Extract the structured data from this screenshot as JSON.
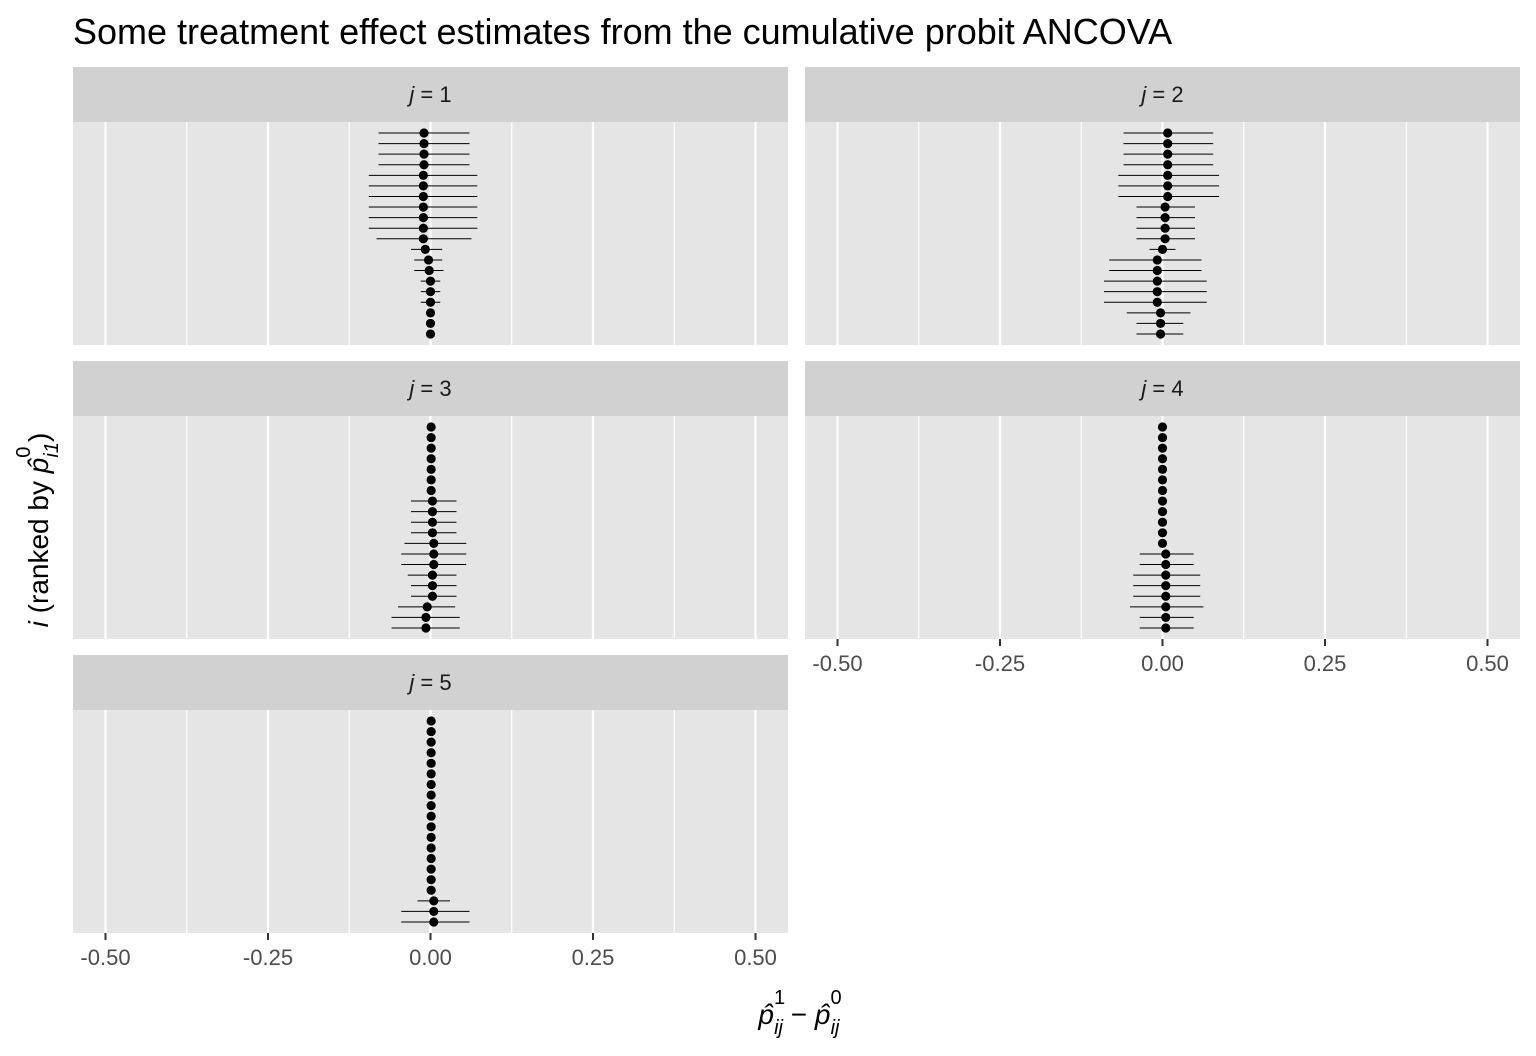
{
  "chart_data": {
    "type": "scatter",
    "title": "Some treatment effect estimates from the cumulative probit ANCOVA",
    "xlabel": {
      "main": "p",
      "sup1": "1",
      "sub1": "ij",
      "minus": "−",
      "sup2": "0",
      "sub2": "ij"
    },
    "ylabel": {
      "prefix": "i",
      "text": "(ranked by ",
      "p": "p",
      "sup": "0",
      "sub": "i1",
      "close": ")"
    },
    "xlim": [
      -0.55,
      0.55
    ],
    "x_ticks": [
      -0.5,
      -0.25,
      0.0,
      0.25,
      0.5
    ],
    "x_tick_labels": [
      "-0.50",
      "-0.25",
      "0.00",
      "0.25",
      "0.50"
    ],
    "grid": true,
    "rows_per_panel": 20,
    "panels": [
      {
        "label_var": "j",
        "label_eq": " = 1",
        "points": [
          {
            "est": -0.01,
            "lo": -0.08,
            "hi": 0.06
          },
          {
            "est": -0.01,
            "lo": -0.08,
            "hi": 0.06
          },
          {
            "est": -0.01,
            "lo": -0.08,
            "hi": 0.06
          },
          {
            "est": -0.01,
            "lo": -0.08,
            "hi": 0.06
          },
          {
            "est": -0.011,
            "lo": -0.095,
            "hi": 0.072
          },
          {
            "est": -0.011,
            "lo": -0.095,
            "hi": 0.072
          },
          {
            "est": -0.011,
            "lo": -0.095,
            "hi": 0.072
          },
          {
            "est": -0.011,
            "lo": -0.095,
            "hi": 0.072
          },
          {
            "est": -0.011,
            "lo": -0.095,
            "hi": 0.072
          },
          {
            "est": -0.011,
            "lo": -0.095,
            "hi": 0.072
          },
          {
            "est": -0.011,
            "lo": -0.083,
            "hi": 0.063
          },
          {
            "est": -0.008,
            "lo": -0.03,
            "hi": 0.018
          },
          {
            "est": -0.003,
            "lo": -0.025,
            "hi": 0.018
          },
          {
            "est": -0.002,
            "lo": -0.025,
            "hi": 0.02
          },
          {
            "est": 0.0,
            "lo": -0.015,
            "hi": 0.015
          },
          {
            "est": 0.0,
            "lo": -0.015,
            "hi": 0.015
          },
          {
            "est": 0.0,
            "lo": -0.015,
            "hi": 0.015
          },
          {
            "est": 0.0,
            "lo": 0.0,
            "hi": 0.0
          },
          {
            "est": 0.0,
            "lo": 0.0,
            "hi": 0.0
          },
          {
            "est": 0.0,
            "lo": 0.0,
            "hi": 0.0
          }
        ]
      },
      {
        "label_var": "j",
        "label_eq": " = 2",
        "points": [
          {
            "est": 0.008,
            "lo": -0.06,
            "hi": 0.078
          },
          {
            "est": 0.008,
            "lo": -0.06,
            "hi": 0.078
          },
          {
            "est": 0.008,
            "lo": -0.06,
            "hi": 0.078
          },
          {
            "est": 0.008,
            "lo": -0.06,
            "hi": 0.078
          },
          {
            "est": 0.008,
            "lo": -0.068,
            "hi": 0.087
          },
          {
            "est": 0.008,
            "lo": -0.068,
            "hi": 0.087
          },
          {
            "est": 0.008,
            "lo": -0.068,
            "hi": 0.087
          },
          {
            "est": 0.004,
            "lo": -0.04,
            "hi": 0.05
          },
          {
            "est": 0.004,
            "lo": -0.04,
            "hi": 0.05
          },
          {
            "est": 0.004,
            "lo": -0.04,
            "hi": 0.05
          },
          {
            "est": 0.004,
            "lo": -0.04,
            "hi": 0.05
          },
          {
            "est": 0.0,
            "lo": -0.02,
            "hi": 0.02
          },
          {
            "est": -0.008,
            "lo": -0.082,
            "hi": 0.06
          },
          {
            "est": -0.008,
            "lo": -0.082,
            "hi": 0.06
          },
          {
            "est": -0.008,
            "lo": -0.09,
            "hi": 0.068
          },
          {
            "est": -0.008,
            "lo": -0.09,
            "hi": 0.068
          },
          {
            "est": -0.008,
            "lo": -0.09,
            "hi": 0.068
          },
          {
            "est": -0.003,
            "lo": -0.055,
            "hi": 0.043
          },
          {
            "est": -0.003,
            "lo": -0.04,
            "hi": 0.032
          },
          {
            "est": -0.003,
            "lo": -0.04,
            "hi": 0.032
          }
        ]
      },
      {
        "label_var": "j",
        "label_eq": " = 3",
        "points": [
          {
            "est": 0.001,
            "lo": 0.001,
            "hi": 0.001
          },
          {
            "est": 0.001,
            "lo": 0.001,
            "hi": 0.001
          },
          {
            "est": 0.001,
            "lo": 0.001,
            "hi": 0.001
          },
          {
            "est": 0.001,
            "lo": 0.001,
            "hi": 0.001
          },
          {
            "est": 0.001,
            "lo": 0.001,
            "hi": 0.001
          },
          {
            "est": 0.001,
            "lo": 0.001,
            "hi": 0.001
          },
          {
            "est": 0.001,
            "lo": 0.001,
            "hi": 0.001
          },
          {
            "est": 0.003,
            "lo": -0.03,
            "hi": 0.04
          },
          {
            "est": 0.003,
            "lo": -0.03,
            "hi": 0.04
          },
          {
            "est": 0.003,
            "lo": -0.03,
            "hi": 0.04
          },
          {
            "est": 0.003,
            "lo": -0.03,
            "hi": 0.04
          },
          {
            "est": 0.005,
            "lo": -0.04,
            "hi": 0.055
          },
          {
            "est": 0.005,
            "lo": -0.045,
            "hi": 0.055
          },
          {
            "est": 0.005,
            "lo": -0.045,
            "hi": 0.055
          },
          {
            "est": 0.003,
            "lo": -0.035,
            "hi": 0.04
          },
          {
            "est": 0.003,
            "lo": -0.03,
            "hi": 0.04
          },
          {
            "est": 0.003,
            "lo": -0.03,
            "hi": 0.04
          },
          {
            "est": -0.005,
            "lo": -0.05,
            "hi": 0.038
          },
          {
            "est": -0.007,
            "lo": -0.06,
            "hi": 0.045
          },
          {
            "est": -0.007,
            "lo": -0.06,
            "hi": 0.045
          }
        ]
      },
      {
        "label_var": "j",
        "label_eq": " = 4",
        "points": [
          {
            "est": 0.0,
            "lo": 0.0,
            "hi": 0.0
          },
          {
            "est": 0.0,
            "lo": 0.0,
            "hi": 0.0
          },
          {
            "est": 0.0,
            "lo": 0.0,
            "hi": 0.0
          },
          {
            "est": 0.0,
            "lo": 0.0,
            "hi": 0.0
          },
          {
            "est": 0.0,
            "lo": 0.0,
            "hi": 0.0
          },
          {
            "est": 0.0,
            "lo": 0.0,
            "hi": 0.0
          },
          {
            "est": 0.0,
            "lo": 0.0,
            "hi": 0.0
          },
          {
            "est": 0.0,
            "lo": 0.0,
            "hi": 0.0
          },
          {
            "est": 0.0,
            "lo": 0.0,
            "hi": 0.0
          },
          {
            "est": 0.0,
            "lo": 0.0,
            "hi": 0.0
          },
          {
            "est": 0.0,
            "lo": 0.0,
            "hi": 0.0
          },
          {
            "est": 0.0,
            "lo": 0.0,
            "hi": 0.0
          },
          {
            "est": 0.005,
            "lo": -0.035,
            "hi": 0.048
          },
          {
            "est": 0.005,
            "lo": -0.035,
            "hi": 0.048
          },
          {
            "est": 0.005,
            "lo": -0.045,
            "hi": 0.058
          },
          {
            "est": 0.005,
            "lo": -0.045,
            "hi": 0.058
          },
          {
            "est": 0.005,
            "lo": -0.045,
            "hi": 0.058
          },
          {
            "est": 0.005,
            "lo": -0.05,
            "hi": 0.063
          },
          {
            "est": 0.005,
            "lo": -0.035,
            "hi": 0.048
          },
          {
            "est": 0.005,
            "lo": -0.035,
            "hi": 0.048
          }
        ]
      },
      {
        "label_var": "j",
        "label_eq": " = 5",
        "points": [
          {
            "est": 0.001,
            "lo": 0.001,
            "hi": 0.001
          },
          {
            "est": 0.001,
            "lo": 0.001,
            "hi": 0.001
          },
          {
            "est": 0.001,
            "lo": 0.001,
            "hi": 0.001
          },
          {
            "est": 0.001,
            "lo": 0.001,
            "hi": 0.001
          },
          {
            "est": 0.001,
            "lo": 0.001,
            "hi": 0.001
          },
          {
            "est": 0.001,
            "lo": 0.001,
            "hi": 0.001
          },
          {
            "est": 0.001,
            "lo": 0.001,
            "hi": 0.001
          },
          {
            "est": 0.001,
            "lo": 0.001,
            "hi": 0.001
          },
          {
            "est": 0.001,
            "lo": 0.001,
            "hi": 0.001
          },
          {
            "est": 0.001,
            "lo": 0.001,
            "hi": 0.001
          },
          {
            "est": 0.001,
            "lo": 0.001,
            "hi": 0.001
          },
          {
            "est": 0.001,
            "lo": 0.001,
            "hi": 0.001
          },
          {
            "est": 0.001,
            "lo": 0.001,
            "hi": 0.001
          },
          {
            "est": 0.001,
            "lo": 0.001,
            "hi": 0.001
          },
          {
            "est": 0.001,
            "lo": 0.001,
            "hi": 0.001
          },
          {
            "est": 0.001,
            "lo": 0.001,
            "hi": 0.001
          },
          {
            "est": 0.001,
            "lo": 0.001,
            "hi": 0.001
          },
          {
            "est": 0.005,
            "lo": -0.02,
            "hi": 0.03
          },
          {
            "est": 0.005,
            "lo": -0.045,
            "hi": 0.06
          },
          {
            "est": 0.005,
            "lo": -0.045,
            "hi": 0.06
          }
        ]
      }
    ],
    "colors": {
      "panel_bg": "#e5e5e5",
      "strip_bg": "#d1d1d1",
      "grid": "#ffffff",
      "point": "#000000",
      "tick_text": "#4d4d4d"
    }
  }
}
